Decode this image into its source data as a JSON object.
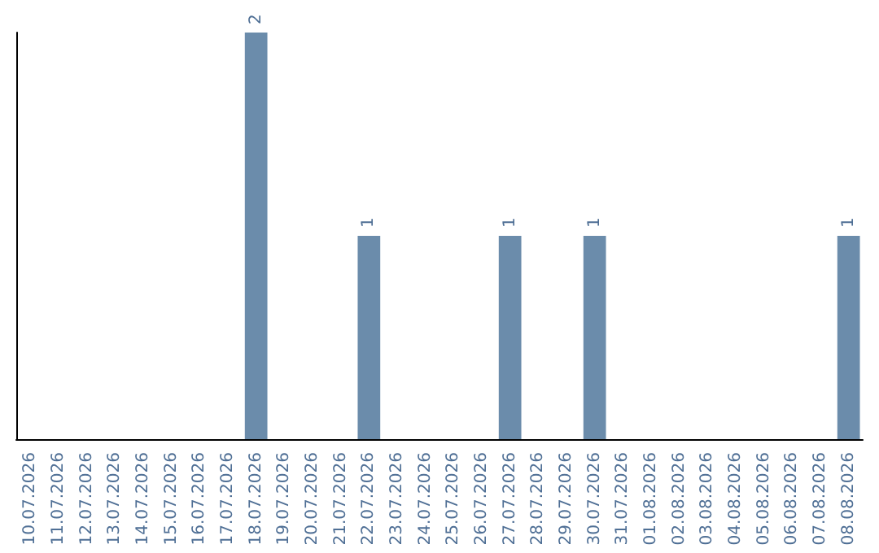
{
  "chart_data": {
    "type": "bar",
    "categories": [
      "10.07.2026",
      "11.07.2026",
      "12.07.2026",
      "13.07.2026",
      "14.07.2026",
      "15.07.2026",
      "16.07.2026",
      "17.07.2026",
      "18.07.2026",
      "19.07.2026",
      "20.07.2026",
      "21.07.2026",
      "22.07.2026",
      "23.07.2026",
      "24.07.2026",
      "25.07.2026",
      "26.07.2026",
      "27.07.2026",
      "28.07.2026",
      "29.07.2026",
      "30.07.2026",
      "31.07.2026",
      "01.08.2026",
      "02.08.2026",
      "03.08.2026",
      "04.08.2026",
      "05.08.2026",
      "06.08.2026",
      "07.08.2026",
      "08.08.2026"
    ],
    "values": [
      0,
      0,
      0,
      0,
      0,
      0,
      0,
      0,
      2,
      0,
      0,
      0,
      1,
      0,
      0,
      0,
      0,
      1,
      0,
      0,
      1,
      0,
      0,
      0,
      0,
      0,
      0,
      0,
      0,
      1
    ],
    "value_labels": [
      null,
      null,
      null,
      null,
      null,
      null,
      null,
      null,
      "2",
      null,
      null,
      null,
      "1",
      null,
      null,
      null,
      null,
      "1",
      null,
      null,
      "1",
      null,
      null,
      null,
      null,
      null,
      null,
      null,
      null,
      "1"
    ],
    "color": "#6b8cab"
  }
}
